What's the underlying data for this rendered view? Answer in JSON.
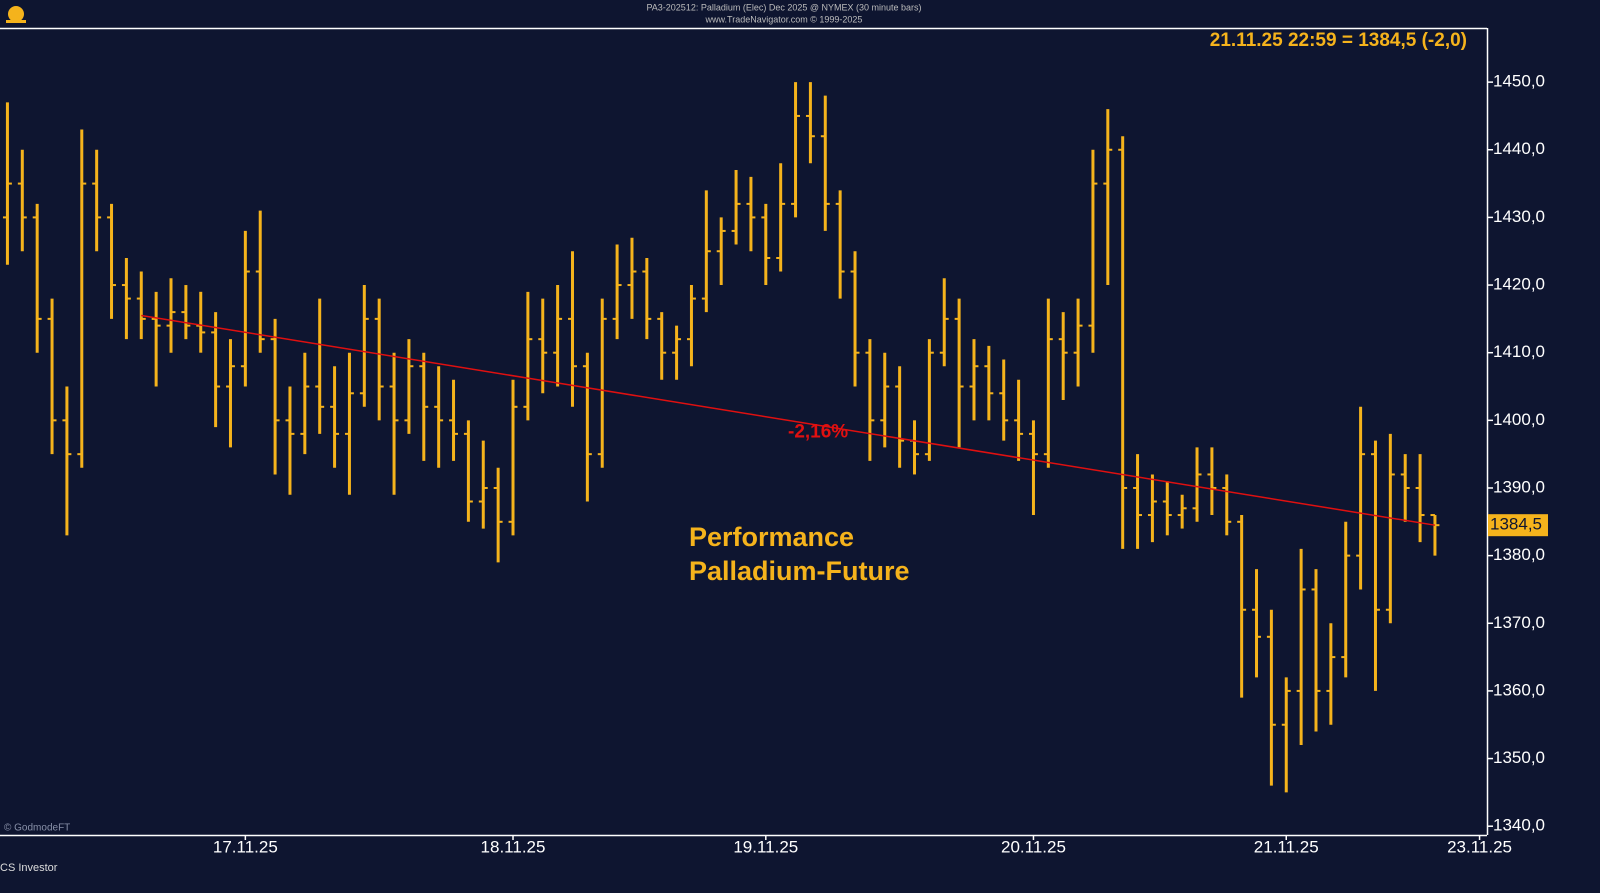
{
  "chart_data": {
    "type": "ohlc",
    "title": "PA3-202512:  Palladium (Elec) Dec 2025 @ NYMEX  (30 minute bars)",
    "subtitle": "www.TradeNavigator.com © 1999-2025",
    "last_quote": "21.11.25 22:59 = 1384,5 (-2,0)",
    "last_price": {
      "value": 1384.5,
      "label": "1384,5"
    },
    "annotation": [
      "Performance",
      "Palladium-Future"
    ],
    "watermark": "© GodmodeFT",
    "source": "CS Investor",
    "color": "#f5b31c",
    "trend": {
      "label": "-2,16%",
      "color": "#e01010",
      "start": [
        9,
        1415.5
      ],
      "end": [
        96,
        1384.5
      ]
    },
    "categories": [
      null,
      null,
      null,
      null,
      null,
      null,
      null,
      null,
      null,
      null,
      null,
      null,
      null,
      null,
      null,
      null,
      "17.11.25",
      null,
      null,
      null,
      null,
      null,
      null,
      null,
      null,
      null,
      null,
      null,
      null,
      null,
      null,
      null,
      null,
      null,
      "18.11.25",
      null,
      null,
      null,
      null,
      null,
      null,
      null,
      null,
      null,
      null,
      null,
      null,
      null,
      null,
      null,
      null,
      "19.11.25",
      null,
      null,
      null,
      null,
      null,
      null,
      null,
      null,
      null,
      null,
      null,
      null,
      null,
      null,
      null,
      null,
      null,
      "20.11.25",
      null,
      null,
      null,
      null,
      null,
      null,
      null,
      null,
      null,
      null,
      null,
      null,
      null,
      null,
      null,
      null,
      "21.11.25",
      null,
      null,
      null,
      null,
      null,
      null,
      null,
      null,
      null,
      null,
      null,
      null,
      "23.11.25"
    ],
    "open": [
      1430,
      1435,
      1430,
      1415,
      1400,
      1395,
      1435,
      1430,
      1420,
      1418,
      1415,
      1414,
      1416,
      1414,
      1413,
      1405,
      1408,
      1422,
      1412,
      1400,
      1398,
      1405,
      1402,
      1398,
      1404,
      1415,
      1405,
      1400,
      1408,
      1402,
      1400,
      1398,
      1388,
      1390,
      1385,
      1402,
      1412,
      1410,
      1415,
      1408,
      1395,
      1415,
      1420,
      1422,
      1415,
      1410,
      1412,
      1418,
      1425,
      1428,
      1432,
      1430,
      1424,
      1432,
      1445,
      1442,
      1432,
      1422,
      1410,
      1400,
      1405,
      1397,
      1395,
      1410,
      1415,
      1405,
      1408,
      1404,
      1400,
      1398,
      1395,
      1412,
      1410,
      1414,
      1435,
      1440,
      1390,
      1386,
      1388,
      1386,
      1387,
      1392,
      1390,
      1385,
      1372,
      1368,
      1355,
      1360,
      1375,
      1360,
      1365,
      1380,
      1395,
      1372,
      1392,
      1390,
      1386,
      null,
      null,
      null
    ],
    "high": [
      1447,
      1440,
      1432,
      1418,
      1405,
      1443,
      1440,
      1432,
      1424,
      1422,
      1419,
      1421,
      1420,
      1419,
      1416,
      1412,
      1428,
      1431,
      1415,
      1405,
      1410,
      1418,
      1408,
      1410,
      1420,
      1418,
      1410,
      1412,
      1410,
      1408,
      1406,
      1400,
      1397,
      1393,
      1406,
      1419,
      1418,
      1420,
      1425,
      1410,
      1418,
      1426,
      1427,
      1424,
      1416,
      1414,
      1420,
      1434,
      1430,
      1437,
      1436,
      1432,
      1438,
      1450,
      1450,
      1448,
      1434,
      1425,
      1412,
      1410,
      1408,
      1400,
      1412,
      1421,
      1418,
      1412,
      1411,
      1409,
      1406,
      1400,
      1418,
      1416,
      1418,
      1440,
      1446,
      1442,
      1395,
      1392,
      1391,
      1389,
      1396,
      1396,
      1392,
      1386,
      1378,
      1372,
      1362,
      1381,
      1378,
      1370,
      1385,
      1402,
      1397,
      1398,
      1395,
      1395,
      1386,
      null,
      null,
      null
    ],
    "low": [
      1423,
      1425,
      1410,
      1395,
      1383,
      1393,
      1425,
      1415,
      1412,
      1412,
      1405,
      1410,
      1412,
      1410,
      1399,
      1396,
      1405,
      1410,
      1392,
      1389,
      1395,
      1398,
      1393,
      1389,
      1402,
      1400,
      1389,
      1398,
      1394,
      1393,
      1394,
      1385,
      1384,
      1379,
      1383,
      1400,
      1404,
      1405,
      1402,
      1388,
      1393,
      1412,
      1415,
      1412,
      1406,
      1406,
      1408,
      1416,
      1420,
      1426,
      1425,
      1420,
      1422,
      1430,
      1438,
      1428,
      1418,
      1405,
      1394,
      1396,
      1393,
      1392,
      1394,
      1408,
      1396,
      1400,
      1400,
      1397,
      1394,
      1386,
      1393,
      1403,
      1405,
      1410,
      1420,
      1381,
      1381,
      1382,
      1383,
      1384,
      1385,
      1386,
      1383,
      1359,
      1362,
      1346,
      1345,
      1352,
      1354,
      1355,
      1362,
      1375,
      1360,
      1370,
      1385,
      1382,
      1380,
      null,
      null,
      null
    ],
    "close": [
      1435,
      1430,
      1415,
      1400,
      1395,
      1435,
      1430,
      1420,
      1418,
      1415,
      1414,
      1416,
      1414,
      1413,
      1405,
      1408,
      1422,
      1412,
      1400,
      1398,
      1405,
      1402,
      1398,
      1404,
      1415,
      1405,
      1400,
      1408,
      1402,
      1400,
      1398,
      1388,
      1390,
      1385,
      1402,
      1412,
      1410,
      1415,
      1408,
      1395,
      1415,
      1420,
      1422,
      1415,
      1410,
      1412,
      1418,
      1425,
      1428,
      1432,
      1430,
      1424,
      1432,
      1445,
      1442,
      1432,
      1422,
      1410,
      1400,
      1405,
      1397,
      1395,
      1410,
      1415,
      1405,
      1408,
      1404,
      1400,
      1398,
      1395,
      1412,
      1410,
      1414,
      1435,
      1440,
      1390,
      1386,
      1388,
      1386,
      1387,
      1392,
      1390,
      1385,
      1372,
      1368,
      1355,
      1360,
      1375,
      1360,
      1365,
      1380,
      1395,
      1372,
      1392,
      1390,
      1386,
      1384.5,
      null,
      null,
      null
    ],
    "ylim": [
      1338.7,
      1458.0
    ],
    "yticks": [
      {
        "value": 1340,
        "label": "1340,0"
      },
      {
        "value": 1350,
        "label": "1350,0"
      },
      {
        "value": 1360,
        "label": "1360,0"
      },
      {
        "value": 1370,
        "label": "1370,0"
      },
      {
        "value": 1380,
        "label": "1380,0"
      },
      {
        "value": 1390,
        "label": "1390,0"
      },
      {
        "value": 1400,
        "label": "1400,0"
      },
      {
        "value": 1410,
        "label": "1410,0"
      },
      {
        "value": 1420,
        "label": "1420,0"
      },
      {
        "value": 1430,
        "label": "1430,0"
      },
      {
        "value": 1440,
        "label": "1440,0"
      },
      {
        "value": 1450,
        "label": "1450,0"
      }
    ]
  }
}
